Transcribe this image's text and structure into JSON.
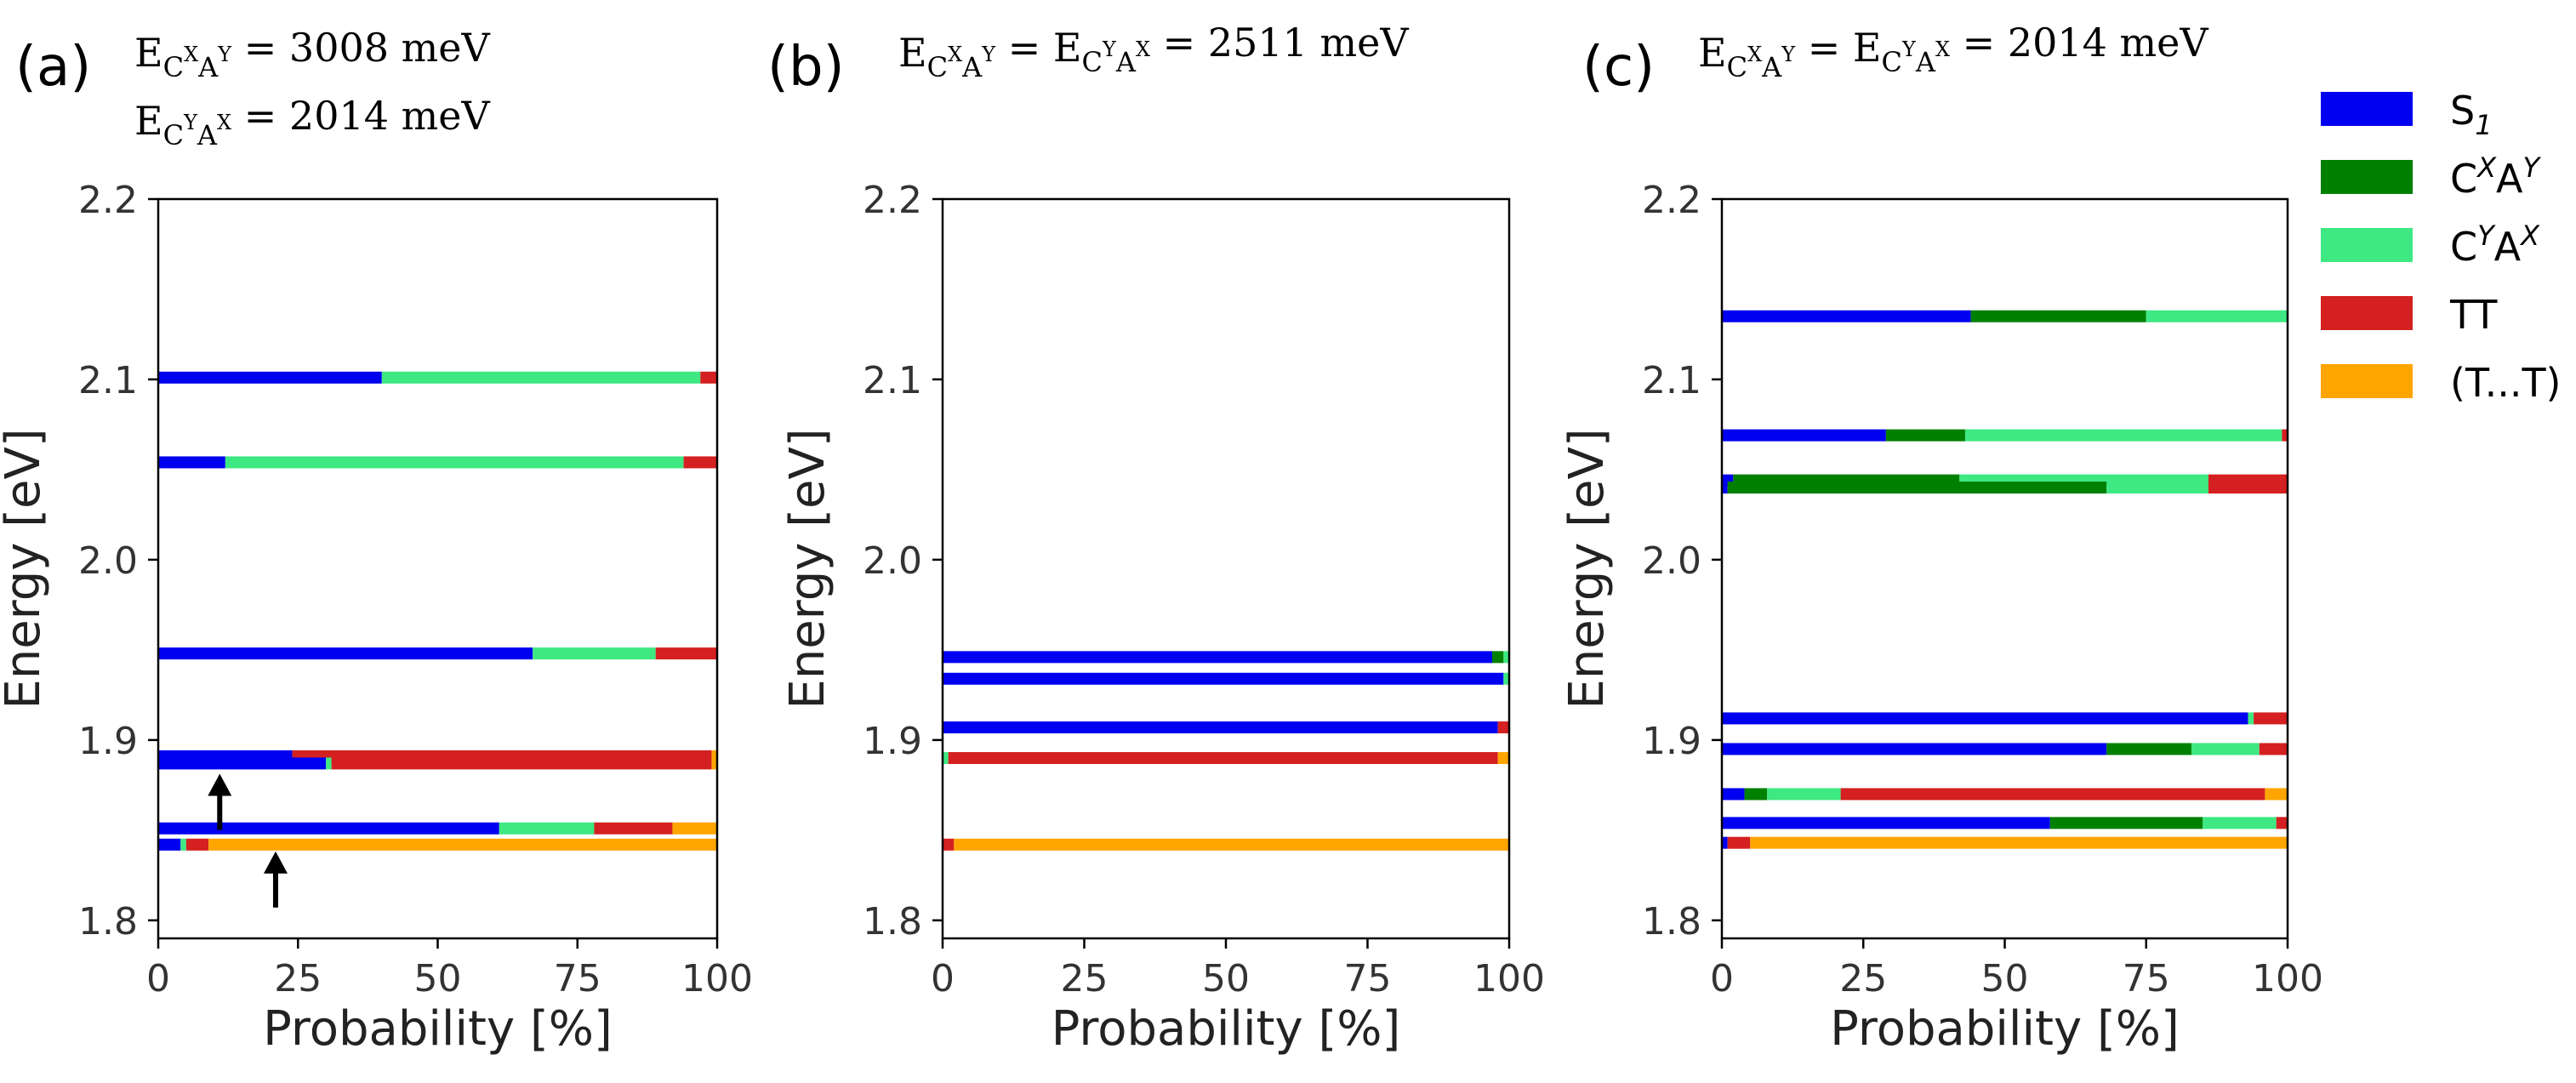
{
  "chart_data": [
    {
      "id": "a",
      "type": "bar",
      "orientation": "horizontal-stacked",
      "panel_label": "(a)",
      "annotation_lines": [
        "E_C^XA^Y = 3008 meV",
        "E_C^YA^X = 2014 meV"
      ],
      "xlabel": "Probability [%]",
      "ylabel": "Energy [eV]",
      "xlim": [
        0,
        100
      ],
      "ylim": [
        1.79,
        2.2
      ],
      "xticks": [
        0,
        25,
        50,
        75,
        100
      ],
      "xtick_labels": [
        "0",
        "25",
        "50",
        "75",
        "100"
      ],
      "yticks": [
        1.8,
        1.9,
        2.0,
        2.1,
        2.2
      ],
      "ytick_labels": [
        "1.8",
        "1.9",
        "2.0",
        "2.1",
        "2.2"
      ],
      "levels": [
        {
          "energy": 2.101,
          "segments": [
            [
              "S1",
              40
            ],
            [
              "CYAX",
              57
            ],
            [
              "TT",
              3
            ]
          ]
        },
        {
          "energy": 2.054,
          "segments": [
            [
              "S1",
              12
            ],
            [
              "CYAX",
              82
            ],
            [
              "TT",
              6
            ]
          ]
        },
        {
          "energy": 1.948,
          "segments": [
            [
              "S1",
              67
            ],
            [
              "CYAX",
              22
            ],
            [
              "TT",
              11
            ]
          ]
        },
        {
          "energy": 1.891,
          "segments": [
            [
              "S1",
              24
            ],
            [
              "TT",
              75
            ],
            [
              "TTsep",
              1
            ]
          ]
        },
        {
          "energy": 1.887,
          "segments": [
            [
              "S1",
              30
            ],
            [
              "CYAX",
              1
            ],
            [
              "TT",
              68
            ],
            [
              "TTsep",
              1
            ]
          ]
        },
        {
          "energy": 1.851,
          "segments": [
            [
              "S1",
              61
            ],
            [
              "CYAX",
              17
            ],
            [
              "TT",
              14
            ],
            [
              "TTsep",
              8
            ]
          ]
        },
        {
          "energy": 1.842,
          "segments": [
            [
              "S1",
              4
            ],
            [
              "CYAX",
              1
            ],
            [
              "TT",
              4
            ],
            [
              "TTsep",
              91
            ]
          ]
        }
      ],
      "arrows": [
        {
          "x": 11,
          "y": 1.869
        },
        {
          "x": 21,
          "y": 1.826
        }
      ]
    },
    {
      "id": "b",
      "type": "bar",
      "orientation": "horizontal-stacked",
      "panel_label": "(b)",
      "annotation_lines": [
        "E_C^XA^Y = E_C^YA^X = 2511 meV"
      ],
      "xlabel": "Probability [%]",
      "ylabel": "Energy [eV]",
      "xlim": [
        0,
        100
      ],
      "ylim": [
        1.79,
        2.2
      ],
      "xticks": [
        0,
        25,
        50,
        75,
        100
      ],
      "xtick_labels": [
        "0",
        "25",
        "50",
        "75",
        "100"
      ],
      "yticks": [
        1.8,
        1.9,
        2.0,
        2.1,
        2.2
      ],
      "ytick_labels": [
        "1.8",
        "1.9",
        "2.0",
        "2.1",
        "2.2"
      ],
      "levels": [
        {
          "energy": 1.946,
          "segments": [
            [
              "S1",
              97
            ],
            [
              "CXAY",
              2
            ],
            [
              "CYAX",
              1
            ]
          ]
        },
        {
          "energy": 1.934,
          "segments": [
            [
              "S1",
              99
            ],
            [
              "CYAX",
              1
            ]
          ]
        },
        {
          "energy": 1.907,
          "segments": [
            [
              "S1",
              98
            ],
            [
              "TT",
              2
            ]
          ]
        },
        {
          "energy": 1.89,
          "segments": [
            [
              "CYAX",
              1
            ],
            [
              "TT",
              97
            ],
            [
              "TTsep",
              2
            ]
          ]
        },
        {
          "energy": 1.842,
          "segments": [
            [
              "TT",
              2
            ],
            [
              "TTsep",
              98
            ]
          ]
        }
      ]
    },
    {
      "id": "c",
      "type": "bar",
      "orientation": "horizontal-stacked",
      "panel_label": "(c)",
      "annotation_lines": [
        "E_C^XA^Y = E_C^YA^X = 2014 meV"
      ],
      "xlabel": "Probability [%]",
      "ylabel": "Energy [eV]",
      "xlim": [
        0,
        100
      ],
      "ylim": [
        1.79,
        2.2
      ],
      "xticks": [
        0,
        25,
        50,
        75,
        100
      ],
      "xtick_labels": [
        "0",
        "25",
        "50",
        "75",
        "100"
      ],
      "yticks": [
        1.8,
        1.9,
        2.0,
        2.1,
        2.2
      ],
      "ytick_labels": [
        "1.8",
        "1.9",
        "2.0",
        "2.1",
        "2.2"
      ],
      "levels": [
        {
          "energy": 2.135,
          "segments": [
            [
              "S1",
              44
            ],
            [
              "CXAY",
              31
            ],
            [
              "CYAX",
              25
            ]
          ]
        },
        {
          "energy": 2.069,
          "segments": [
            [
              "S1",
              29
            ],
            [
              "CXAY",
              14
            ],
            [
              "CYAX",
              56
            ],
            [
              "TT",
              1
            ]
          ]
        },
        {
          "energy": 2.044,
          "segments": [
            [
              "S1",
              2
            ],
            [
              "CXAY",
              40
            ],
            [
              "CYAX",
              44
            ],
            [
              "TT",
              14
            ]
          ]
        },
        {
          "energy": 2.04,
          "segments": [
            [
              "S1",
              1
            ],
            [
              "CXAY",
              67
            ],
            [
              "CYAX",
              18
            ],
            [
              "TT",
              14
            ]
          ]
        },
        {
          "energy": 1.912,
          "segments": [
            [
              "S1",
              93
            ],
            [
              "CYAX",
              1
            ],
            [
              "TT",
              6
            ]
          ]
        },
        {
          "energy": 1.895,
          "segments": [
            [
              "S1",
              68
            ],
            [
              "CXAY",
              15
            ],
            [
              "CYAX",
              12
            ],
            [
              "TT",
              5
            ]
          ]
        },
        {
          "energy": 1.87,
          "segments": [
            [
              "S1",
              4
            ],
            [
              "CXAY",
              4
            ],
            [
              "CYAX",
              13
            ],
            [
              "TT",
              75
            ],
            [
              "TTsep",
              4
            ]
          ]
        },
        {
          "energy": 1.854,
          "segments": [
            [
              "S1",
              58
            ],
            [
              "CXAY",
              27
            ],
            [
              "CYAX",
              13
            ],
            [
              "TT",
              2
            ]
          ]
        },
        {
          "energy": 1.843,
          "segments": [
            [
              "S1",
              1
            ],
            [
              "TT",
              4
            ],
            [
              "TTsep",
              95
            ]
          ]
        }
      ]
    }
  ],
  "legend": [
    {
      "key": "S1",
      "base": "S",
      "sub": "1",
      "sup1": "",
      "mid": "",
      "sup2": "",
      "color": "#0000f0"
    },
    {
      "key": "CXAY",
      "base": "C",
      "sub": "",
      "sup1": "X",
      "mid": "A",
      "sup2": "Y",
      "color": "#008000"
    },
    {
      "key": "CYAX",
      "base": "C",
      "sub": "",
      "sup1": "Y",
      "mid": "A",
      "sup2": "X",
      "color": "#3ee882"
    },
    {
      "key": "TT",
      "base": "TT",
      "sub": "",
      "sup1": "",
      "mid": "",
      "sup2": "",
      "color": "#d42020"
    },
    {
      "key": "TTsep",
      "base": "(T...T)",
      "sub": "",
      "sup1": "",
      "mid": "",
      "sup2": "",
      "color": "#ffa500"
    }
  ]
}
